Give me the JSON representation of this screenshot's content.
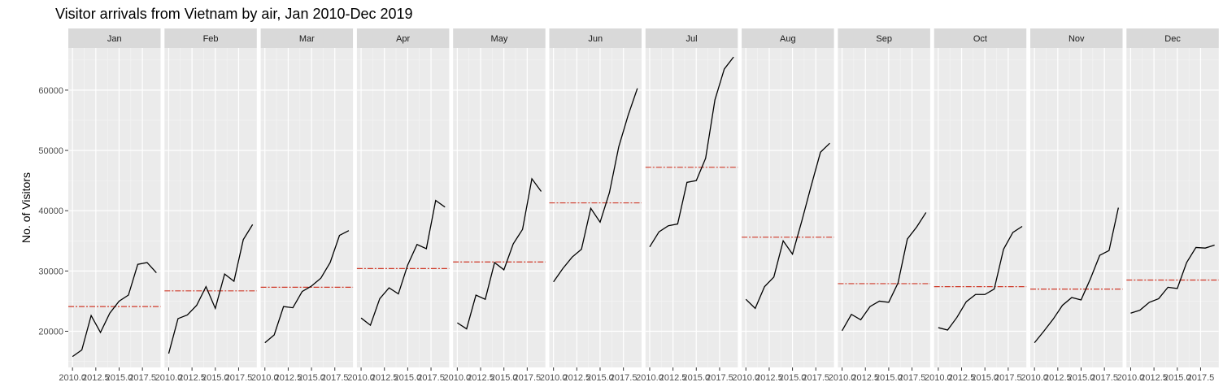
{
  "chart_data": {
    "type": "line",
    "title": "Visitor arrivals from Vietnam by air, Jan 2010-Dec 2019",
    "xlabel": "",
    "ylabel": "No. of Visitors",
    "facet_by": "month",
    "x": [
      2010,
      2011,
      2012,
      2013,
      2014,
      2015,
      2016,
      2017,
      2018,
      2019
    ],
    "x_ticks": [
      2010.0,
      2012.5,
      2015.0,
      2017.5
    ],
    "x_tick_labels": [
      "2010.0",
      "2012.5",
      "2015.0",
      "2017.5"
    ],
    "xlim": [
      2009.55,
      2019.45
    ],
    "y_ticks": [
      20000,
      30000,
      40000,
      50000,
      60000
    ],
    "y_tick_labels": [
      "20000",
      "30000",
      "40000",
      "50000",
      "60000"
    ],
    "ylim": [
      14000,
      67000
    ],
    "grid": true,
    "line_color": "#000000",
    "mean_line_color": "#d03b2a",
    "mean_line_style": "dashed",
    "panel_background": "#ebebeb",
    "strip_background": "#d9d9d9",
    "panels": [
      {
        "month": "Jan",
        "values": [
          15800,
          16900,
          22600,
          19800,
          23000,
          25000,
          26000,
          31100,
          31400,
          29700
        ],
        "mean": 24100
      },
      {
        "month": "Feb",
        "values": [
          16300,
          22100,
          22700,
          24300,
          27400,
          23800,
          29500,
          28300,
          35200,
          37700
        ],
        "mean": 26700
      },
      {
        "month": "Mar",
        "values": [
          18100,
          19400,
          24100,
          23900,
          26600,
          27500,
          28800,
          31400,
          35900,
          36700
        ],
        "mean": 27300
      },
      {
        "month": "Apr",
        "values": [
          22200,
          21000,
          25400,
          27200,
          26200,
          31000,
          34400,
          33700,
          41700,
          40600
        ],
        "mean": 30400
      },
      {
        "month": "May",
        "values": [
          21400,
          20400,
          26000,
          25300,
          31400,
          30200,
          34500,
          36900,
          45300,
          43200
        ],
        "mean": 31500
      },
      {
        "month": "Jun",
        "values": [
          28200,
          30400,
          32300,
          33600,
          40400,
          38100,
          43000,
          50600,
          55800,
          60300
        ],
        "mean": 41300
      },
      {
        "month": "Jul",
        "values": [
          34000,
          36500,
          37500,
          37800,
          44700,
          45000,
          48700,
          58400,
          63500,
          65500
        ],
        "mean": 47200
      },
      {
        "month": "Aug",
        "values": [
          25300,
          23800,
          27400,
          29000,
          35000,
          32800,
          38300,
          44100,
          49700,
          51200
        ],
        "mean": 35600
      },
      {
        "month": "Sep",
        "values": [
          20100,
          22800,
          21900,
          24100,
          25000,
          24800,
          28000,
          35300,
          37300,
          39700
        ],
        "mean": 27900
      },
      {
        "month": "Oct",
        "values": [
          20600,
          20200,
          22300,
          24900,
          26100,
          26100,
          27000,
          33600,
          36400,
          37400
        ],
        "mean": 27400
      },
      {
        "month": "Nov",
        "values": [
          18100,
          20000,
          22000,
          24300,
          25600,
          25200,
          28700,
          32600,
          33400,
          40500
        ],
        "mean": 27000
      },
      {
        "month": "Dec",
        "values": [
          23000,
          23500,
          24800,
          25400,
          27300,
          27100,
          31400,
          33900,
          33800,
          34300
        ],
        "mean": 28500
      }
    ]
  }
}
